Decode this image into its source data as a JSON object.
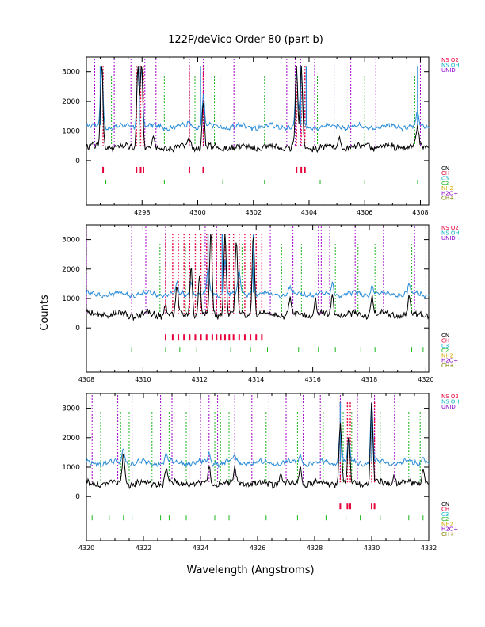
{
  "title": "122P/deVico Order 80 (part b)",
  "xlabel": "Wavelength (Angstroms)",
  "ylabel": "Counts",
  "legend_top": [
    {
      "label": "NS O2",
      "color": "#e8003a"
    },
    {
      "label": "NS OH",
      "color": "#10b4c8"
    },
    {
      "label": "UNID",
      "color": "#8a00c8"
    }
  ],
  "legend_bottom": [
    {
      "label": "CN",
      "color": "#000000"
    },
    {
      "label": "CH",
      "color": "#e8003a"
    },
    {
      "label": "C3",
      "color": "#10b4c8"
    },
    {
      "label": "C2",
      "color": "#18b418"
    },
    {
      "label": "NH2",
      "color": "#d8a800"
    },
    {
      "label": "H2O+",
      "color": "#8a00c8"
    },
    {
      "label": "CH+",
      "color": "#808000"
    }
  ],
  "colors": {
    "sky": "#2a8cd8",
    "comet": "#000000",
    "unid": "#a000c8",
    "c2": "#18b418",
    "ch": "#e8003a",
    "c3": "#10b4c8",
    "nh2": "#b89000"
  },
  "chart_data": [
    {
      "type": "line",
      "panel": 1,
      "xlim": [
        4296.0,
        4308.3
      ],
      "ylim": [
        -1500,
        3500
      ],
      "xticks": [
        4298,
        4300,
        4302,
        4304,
        4306,
        4308
      ],
      "xtick_labels": [
        "4298",
        "4300",
        "4302",
        "4304",
        "4306",
        "4308"
      ],
      "yticks": [
        0,
        1000,
        2000,
        3000
      ],
      "ytick_labels": [
        "0",
        "1000",
        "2000",
        "3000"
      ],
      "series": [
        {
          "name": "Sky",
          "baseline": 1150,
          "peaks": [
            [
              4296.55,
              2300
            ],
            [
              4297.85,
              1900
            ],
            [
              4297.98,
              2000
            ],
            [
              4299.7,
              250
            ],
            [
              4300.2,
              1050
            ],
            [
              4303.55,
              1800
            ],
            [
              4303.72,
              1800
            ],
            [
              4307.9,
              500
            ]
          ]
        },
        {
          "name": "Comet",
          "baseline": 450,
          "peaks": [
            [
              4296.55,
              3000
            ],
            [
              4297.85,
              2800
            ],
            [
              4297.98,
              3000
            ],
            [
              4298.4,
              350
            ],
            [
              4299.7,
              300
            ],
            [
              4300.2,
              1500
            ],
            [
              4303.55,
              2800
            ],
            [
              4303.72,
              2800
            ],
            [
              4305.1,
              350
            ],
            [
              4306.1,
              250
            ],
            [
              4307.9,
              700
            ]
          ]
        }
      ],
      "markers": {
        "unid": [
          4296.3,
          4297.0,
          4297.6,
          4298.1,
          4298.5,
          4299.7,
          4300.2,
          4301.3,
          4303.2,
          4303.5,
          4303.7,
          4304.2,
          4304.9,
          4305.5,
          4306.4,
          4308.0
        ],
        "c2": [
          4296.9,
          4297.9,
          4298.8,
          4299.9,
          4300.6,
          4300.8,
          4302.4,
          4304.3,
          4306.0,
          4307.8
        ],
        "ch": [
          4296.6,
          4297.8,
          4297.95,
          4298.05,
          4299.7,
          4300.2,
          4303.55,
          4303.72,
          4303.85
        ],
        "c2_bottom": [
          4296.7,
          4298.8,
          4300.9,
          4302.4,
          4304.4,
          4306.0,
          4307.9
        ],
        "blue_top": [
          4296.5,
          4297.9,
          4300.1,
          4303.7,
          4303.9,
          4307.9
        ]
      }
    },
    {
      "type": "line",
      "panel": 2,
      "xlim": [
        4308.0,
        4320.1
      ],
      "ylim": [
        -1500,
        3500
      ],
      "xticks": [
        4308,
        4310,
        4312,
        4314,
        4316,
        4318,
        4320
      ],
      "xtick_labels": [
        "4308",
        "4310",
        "4312",
        "4314",
        "4316",
        "4318",
        "4320"
      ],
      "yticks": [
        0,
        1000,
        2000,
        3000
      ],
      "ytick_labels": [
        "0",
        "1000",
        "2000",
        "3000"
      ],
      "series": [
        {
          "name": "Sky",
          "baseline": 1150,
          "peaks": [
            [
              4311.2,
              300
            ],
            [
              4311.7,
              500
            ],
            [
              4312.3,
              900
            ],
            [
              4312.9,
              1200
            ],
            [
              4313.4,
              800
            ],
            [
              4313.9,
              1000
            ],
            [
              4315.2,
              250
            ],
            [
              4316.7,
              350
            ],
            [
              4318.1,
              300
            ],
            [
              4319.4,
              300
            ]
          ]
        },
        {
          "name": "Comet",
          "baseline": 450,
          "peaks": [
            [
              4310.8,
              400
            ],
            [
              4311.2,
              900
            ],
            [
              4311.7,
              1700
            ],
            [
              4312.0,
              1300
            ],
            [
              4312.4,
              2800
            ],
            [
              4312.9,
              2800
            ],
            [
              4313.3,
              2500
            ],
            [
              4313.9,
              2800
            ],
            [
              4315.2,
              600
            ],
            [
              4316.1,
              500
            ],
            [
              4316.7,
              700
            ],
            [
              4318.1,
              700
            ],
            [
              4319.4,
              600
            ]
          ]
        }
      ],
      "markers": {
        "unid": [
          4308.0,
          4309.6,
          4310.1,
          4310.8,
          4312.2,
          4312.6,
          4314.5,
          4315.3,
          4316.2,
          4316.3,
          4316.6,
          4317.5,
          4318.5,
          4319.6,
          4320.0
        ],
        "c2": [
          4310.6,
          4311.5,
          4313.5,
          4314.9,
          4315.6,
          4316.8,
          4317.6,
          4318.2,
          4319.5
        ],
        "ch": [
          4310.8,
          4311.05,
          4311.25,
          4311.45,
          4311.65,
          4311.85,
          4312.05,
          4312.25,
          4312.45,
          4312.6,
          4312.75,
          4312.9,
          4313.05,
          4313.2,
          4313.4,
          4313.6,
          4313.8,
          4314.0,
          4314.2
        ],
        "c2_bottom": [
          4309.6,
          4310.8,
          4311.3,
          4311.9,
          4312.3,
          4313.1,
          4313.8,
          4314.4,
          4315.5,
          4316.2,
          4316.8,
          4317.7,
          4318.2,
          4319.5,
          4319.9
        ],
        "blue_top": [
          4312.3,
          4312.8,
          4313.9
        ]
      }
    },
    {
      "type": "line",
      "panel": 3,
      "xlim": [
        4320.0,
        4332.0
      ],
      "ylim": [
        -1500,
        3500
      ],
      "xticks": [
        4320,
        4322,
        4324,
        4326,
        4328,
        4330,
        4332
      ],
      "xtick_labels": [
        "4320",
        "4322",
        "4324",
        "4326",
        "4328",
        "4330",
        "4332"
      ],
      "yticks": [
        0,
        1000,
        2000,
        3000
      ],
      "ytick_labels": [
        "0",
        "1000",
        "2000",
        "3000"
      ],
      "series": [
        {
          "name": "Sky",
          "baseline": 1150,
          "peaks": [
            [
              4321.3,
              500
            ],
            [
              4322.8,
              300
            ],
            [
              4324.3,
              350
            ],
            [
              4325.2,
              250
            ],
            [
              4327.5,
              300
            ],
            [
              4328.9,
              1200
            ],
            [
              4329.2,
              800
            ],
            [
              4330.0,
              2000
            ],
            [
              4331.8,
              300
            ]
          ]
        },
        {
          "name": "Comet",
          "baseline": 450,
          "peaks": [
            [
              4321.3,
              1100
            ],
            [
              4322.8,
              500
            ],
            [
              4324.3,
              600
            ],
            [
              4325.2,
              500
            ],
            [
              4326.8,
              400
            ],
            [
              4327.5,
              600
            ],
            [
              4328.9,
              2100
            ],
            [
              4329.2,
              1500
            ],
            [
              4330.0,
              2700
            ],
            [
              4330.8,
              300
            ],
            [
              4331.8,
              500
            ]
          ]
        }
      ],
      "markers": {
        "unid": [
          4320.2,
          4321.1,
          4321.6,
          4322.6,
          4323.0,
          4323.6,
          4324.0,
          4324.3,
          4324.6,
          4325.2,
          4325.8,
          4326.4,
          4327.0,
          4327.6,
          4328.2,
          4328.9,
          4329.5,
          4330.1,
          4330.8
        ],
        "c2": [
          4320.5,
          4321.2,
          4321.5,
          4322.3,
          4322.9,
          4323.5,
          4324.5,
          4324.7,
          4325.0,
          4326.3,
          4327.4,
          4328.3,
          4329.0,
          4329.3,
          4330.3,
          4331.3,
          4331.7,
          4331.9
        ],
        "ch": [
          4328.9,
          4329.15,
          4329.25,
          4330.0,
          4330.1
        ],
        "c2_bottom": [
          4320.2,
          4320.8,
          4321.3,
          4321.6,
          4322.6,
          4322.9,
          4323.5,
          4324.5,
          4325.0,
          4326.3,
          4327.4,
          4328.4,
          4329.1,
          4329.6,
          4330.3,
          4331.3,
          4331.8
        ],
        "blue_top": [
          4328.9,
          4330.0
        ]
      }
    }
  ]
}
